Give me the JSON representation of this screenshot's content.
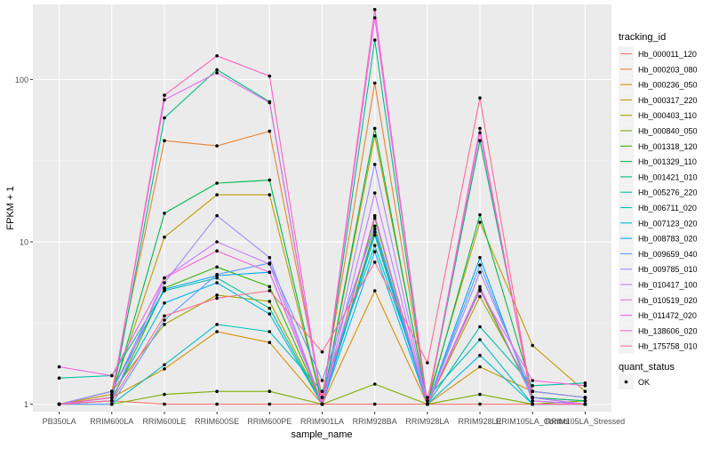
{
  "chart_data": {
    "type": "line",
    "xlabel": "sample_name",
    "ylabel": "FPKM + 1",
    "y_scale": "log10",
    "ylim": [
      0.9,
      290
    ],
    "y_ticks": [
      {
        "value": 1,
        "label": "1"
      },
      {
        "value": 10,
        "label": "10"
      },
      {
        "value": 100,
        "label": "100"
      }
    ],
    "grid": true,
    "panel_background": "#EBEBEB",
    "legend_position": "right",
    "categories": [
      "PB350LA",
      "RRIM600LA",
      "RRIM600LE",
      "RRIM600SE",
      "RRIM600PE",
      "RRIM901LA",
      "RRIM928BA",
      "RRIM928LA",
      "RRIM928LE",
      "RRIM105LA_Control",
      "RRIM105LA_Stressed"
    ],
    "category_labels": [
      "PB350LA",
      "RRIM600LA",
      "RRIM600LE",
      "RRIM600SE",
      "RRIM600PE",
      "RRIM901LA",
      "RRIM928BA",
      "RRIM928LA",
      "RRIM928LE",
      "RRIM105LA_Control",
      "RRIM105LA_Stressed"
    ],
    "series": [
      {
        "name": "Hb_000011_120",
        "color": "#F8766D",
        "values": [
          1.0,
          1.05,
          1.0,
          1.0,
          1.0,
          1.0,
          1.0,
          1.0,
          1.0,
          1.0,
          1.0
        ]
      },
      {
        "name": "Hb_000203_080",
        "color": "#EA8331",
        "values": [
          1.0,
          1.2,
          42,
          39,
          48,
          1.1,
          95,
          1.05,
          42,
          1.1,
          1.05
        ]
      },
      {
        "name": "Hb_000236_050",
        "color": "#D89000",
        "values": [
          1.0,
          1.1,
          1.65,
          2.8,
          2.4,
          1.0,
          5.0,
          1.0,
          1.7,
          1.2,
          1.1
        ]
      },
      {
        "name": "Hb_000317_220",
        "color": "#C09B00",
        "values": [
          1.0,
          1.15,
          10.7,
          19.5,
          19.5,
          1.0,
          45,
          1.05,
          13.2,
          2.3,
          1.2
        ]
      },
      {
        "name": "Hb_000403_110",
        "color": "#A3A500",
        "values": [
          1.0,
          1.2,
          3.1,
          4.7,
          4.3,
          1.0,
          12,
          1.0,
          4.6,
          1.2,
          1.1
        ]
      },
      {
        "name": "Hb_000840_050",
        "color": "#7CAE00",
        "values": [
          1.0,
          1.0,
          1.15,
          1.2,
          1.2,
          1.0,
          1.33,
          1.0,
          1.15,
          1.0,
          1.05
        ]
      },
      {
        "name": "Hb_001318_120",
        "color": "#39B600",
        "values": [
          1.0,
          1.05,
          5.2,
          7.0,
          5.3,
          1.0,
          14,
          1.0,
          5.1,
          1.1,
          1.0
        ]
      },
      {
        "name": "Hb_001329_110",
        "color": "#00BB4E",
        "values": [
          1.0,
          1.1,
          15.0,
          23,
          24,
          1.0,
          50,
          1.0,
          14.7,
          1.2,
          1.1
        ]
      },
      {
        "name": "Hb_001421_010",
        "color": "#00BF7D",
        "values": [
          1.0,
          1.05,
          58,
          115,
          73,
          1.0,
          175,
          1.0,
          42,
          1.1,
          1.05
        ]
      },
      {
        "name": "Hb_005276_220",
        "color": "#00C1A3",
        "values": [
          1.45,
          1.5,
          5.0,
          6.0,
          3.9,
          1.0,
          11,
          1.0,
          3.0,
          1.3,
          1.35
        ]
      },
      {
        "name": "Hb_006711_020",
        "color": "#00BFC4",
        "values": [
          1.0,
          1.0,
          1.75,
          3.1,
          2.8,
          1.2,
          9.5,
          1.1,
          2.5,
          1.0,
          1.0
        ]
      },
      {
        "name": "Hb_007123_020",
        "color": "#00B8E7",
        "values": [
          1.0,
          1.1,
          4.2,
          5.6,
          3.6,
          1.0,
          8.7,
          1.0,
          2.0,
          1.0,
          1.0
        ]
      },
      {
        "name": "Hb_008783_020",
        "color": "#00A9FF",
        "values": [
          1.0,
          1.2,
          5.1,
          6.2,
          6.5,
          1.0,
          11.5,
          1.0,
          8.0,
          1.05,
          1.0
        ]
      },
      {
        "name": "Hb_009659_040",
        "color": "#619CFF",
        "values": [
          1.0,
          1.0,
          3.3,
          6.3,
          7.4,
          1.4,
          12.5,
          1.0,
          7.2,
          1.1,
          1.0
        ]
      },
      {
        "name": "Hb_009785_010",
        "color": "#9F8CFF",
        "values": [
          1.0,
          1.2,
          5.6,
          14.5,
          8.0,
          1.0,
          30,
          1.0,
          6.5,
          1.2,
          1.1
        ]
      },
      {
        "name": "Hb_010417_100",
        "color": "#C77CFF",
        "values": [
          1.0,
          1.05,
          6.0,
          10.0,
          7.3,
          1.0,
          20,
          1.0,
          5.3,
          1.1,
          1.0
        ]
      },
      {
        "name": "Hb_010519_020",
        "color": "#E76BF3",
        "values": [
          1.0,
          1.1,
          75,
          110,
          72,
          1.0,
          240,
          1.0,
          47,
          1.05,
          1.0
        ]
      },
      {
        "name": "Hb_011472_020",
        "color": "#F763E0",
        "values": [
          1.7,
          1.5,
          6.0,
          8.8,
          6.5,
          1.0,
          14.5,
          1.0,
          5.0,
          1.4,
          1.3
        ]
      },
      {
        "name": "Hb_138606_020",
        "color": "#FF61C3",
        "values": [
          1.0,
          1.1,
          80,
          140,
          105,
          1.0,
          270,
          1.0,
          50,
          1.0,
          1.0
        ]
      },
      {
        "name": "Hb_175758_010",
        "color": "#FF6C91",
        "values": [
          1.0,
          1.05,
          3.5,
          4.5,
          5.0,
          2.1,
          7.5,
          1.8,
          77,
          1.0,
          1.0
        ]
      }
    ],
    "legends": {
      "lines": {
        "title": "tracking_id"
      },
      "points": {
        "title": "quant_status",
        "items": [
          {
            "label": "OK",
            "shape": "point"
          }
        ]
      }
    }
  }
}
